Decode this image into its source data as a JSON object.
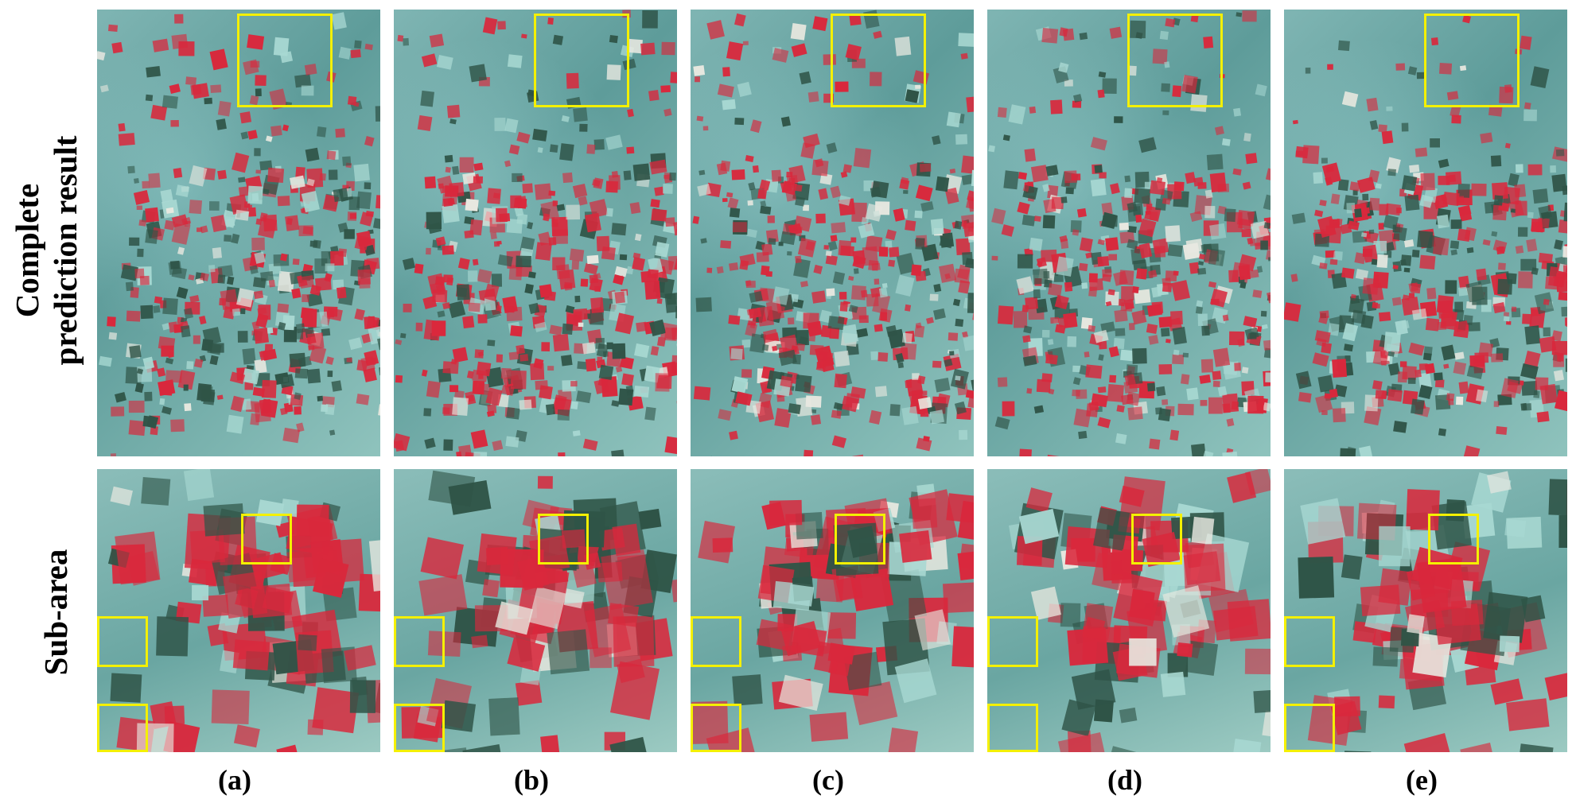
{
  "rows": {
    "top_label_line1": "Complete",
    "top_label_line2": "prediction result",
    "bottom_label": "Sub-area"
  },
  "columns": [
    {
      "caption": "(a)"
    },
    {
      "caption": "(b)"
    },
    {
      "caption": "(c)"
    },
    {
      "caption": "(d)"
    },
    {
      "caption": "(e)"
    }
  ],
  "colors": {
    "background": "#ffffff",
    "highlight_box": "#f4f000",
    "crop_red": "#d9283c",
    "soil_cyan": "#7fb5b3",
    "dark_field": "#2f5447"
  }
}
